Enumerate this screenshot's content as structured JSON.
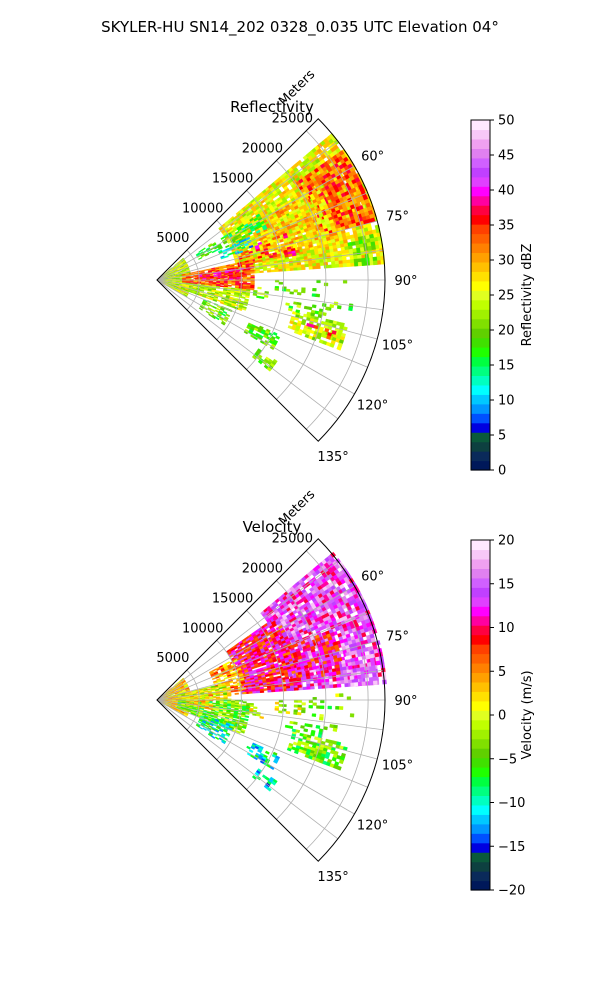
{
  "figure": {
    "suptitle": "SKYLER-HU  SN14_202  0328_0.035 UTC Elevation 04°"
  },
  "chart_data": [
    {
      "type": "heatmap",
      "projection": "polar-sector",
      "title": "Reflectivity",
      "range_axis_label": "Meters",
      "range_ticks": [
        5000,
        10000,
        15000,
        20000,
        25000
      ],
      "range_tick_labels": [
        "5000",
        "10000",
        "15000",
        "20000",
        "25000"
      ],
      "range_lim": [
        0,
        27000
      ],
      "azimuth_range_deg": [
        45,
        135
      ],
      "azimuth_ticks": [
        60,
        75,
        90,
        105,
        120,
        135
      ],
      "azimuth_tick_labels": [
        "60°",
        "75°",
        "90°",
        "105°",
        "120°",
        "135°"
      ],
      "grid": true,
      "colorbar": {
        "label": "Reflectivity dBZ",
        "min": 0,
        "max": 50,
        "ticks": [
          0,
          5,
          10,
          15,
          20,
          25,
          30,
          35,
          40,
          45,
          50
        ],
        "tick_labels": [
          "0",
          "5",
          "10",
          "15",
          "20",
          "25",
          "30",
          "35",
          "40",
          "45",
          "50"
        ],
        "colors": [
          "#00185a",
          "#0a2a5a",
          "#0d4040",
          "#0a5a3a",
          "#0000e0",
          "#0050ff",
          "#0096ff",
          "#00c8ff",
          "#00ffff",
          "#00ffc0",
          "#00ff80",
          "#00ff40",
          "#20ff00",
          "#40e000",
          "#60d000",
          "#80e000",
          "#a0f000",
          "#c0ff00",
          "#e0ff20",
          "#ffff00",
          "#ffe000",
          "#ffc000",
          "#ffa000",
          "#ff8000",
          "#ff6000",
          "#ff4000",
          "#ff0000",
          "#ff0040",
          "#ff00a0",
          "#ff00ff",
          "#e040ff",
          "#c040ff",
          "#d060ff",
          "#e080f0",
          "#f0a0f0",
          "#f8c8f8",
          "#ffe8ff"
        ]
      },
      "regions": [
        {
          "r0": 9500,
          "r1": 27000,
          "az0": 50,
          "az1": 86,
          "value": 26,
          "density": 0.9
        },
        {
          "r0": 20000,
          "r1": 26500,
          "az0": 55,
          "az1": 75,
          "value": 33,
          "density": 0.85
        },
        {
          "r0": 13000,
          "r1": 22000,
          "az0": 60,
          "az1": 78,
          "value": 28,
          "density": 0.7
        },
        {
          "r0": 10000,
          "r1": 17000,
          "az0": 70,
          "az1": 80,
          "value": 36,
          "density": 0.3
        },
        {
          "r0": 23000,
          "r1": 26000,
          "az0": 78,
          "az1": 86,
          "value": 21,
          "density": 0.7
        },
        {
          "r0": 9000,
          "r1": 14000,
          "az0": 57,
          "az1": 65,
          "value": 17,
          "density": 0.5
        },
        {
          "r0": 5500,
          "r1": 8500,
          "az0": 56,
          "az1": 64,
          "value": 18,
          "density": 0.5
        },
        {
          "r0": 8000,
          "r1": 12000,
          "az0": 65,
          "az1": 72,
          "value": 12,
          "density": 0.4
        },
        {
          "r0": 0,
          "r1": 4000,
          "az0": 50,
          "az1": 120,
          "value": 24,
          "density": 0.85
        },
        {
          "r0": 3000,
          "r1": 11500,
          "az0": 78,
          "az1": 96,
          "value": 33,
          "density": 0.85
        },
        {
          "r0": 4500,
          "r1": 10000,
          "az0": 82,
          "az1": 90,
          "value": 37,
          "density": 0.6
        },
        {
          "r0": 3000,
          "r1": 11000,
          "az0": 96,
          "az1": 110,
          "value": 24,
          "density": 0.75
        },
        {
          "r0": 6000,
          "r1": 9500,
          "az0": 112,
          "az1": 124,
          "value": 20,
          "density": 0.45
        },
        {
          "r0": 11500,
          "r1": 13000,
          "az0": 92,
          "az1": 102,
          "value": 21,
          "density": 0.3
        },
        {
          "r0": 12000,
          "r1": 16000,
          "az0": 114,
          "az1": 121,
          "value": 20,
          "density": 0.6
        },
        {
          "r0": 14500,
          "r1": 17000,
          "az0": 124,
          "az1": 129,
          "value": 21,
          "density": 0.6
        },
        {
          "r0": 16500,
          "r1": 23000,
          "az0": 103,
          "az1": 111,
          "value": 24,
          "density": 0.75
        },
        {
          "r0": 18500,
          "r1": 22000,
          "az0": 106,
          "az1": 109,
          "value": 35,
          "density": 0.5
        },
        {
          "r0": 15500,
          "r1": 21000,
          "az0": 99,
          "az1": 103,
          "value": 20,
          "density": 0.35
        },
        {
          "r0": 14000,
          "r1": 17500,
          "az0": 90,
          "az1": 96,
          "value": 18,
          "density": 0.3
        },
        {
          "r0": 18000,
          "r1": 23000,
          "az0": 88,
          "az1": 100,
          "value": 20,
          "density": 0.15
        }
      ]
    },
    {
      "type": "heatmap",
      "projection": "polar-sector",
      "title": "Velocity",
      "range_axis_label": "Meters",
      "range_ticks": [
        5000,
        10000,
        15000,
        20000,
        25000
      ],
      "range_tick_labels": [
        "5000",
        "10000",
        "15000",
        "20000",
        "25000"
      ],
      "range_lim": [
        0,
        27000
      ],
      "azimuth_range_deg": [
        45,
        135
      ],
      "azimuth_ticks": [
        60,
        75,
        90,
        105,
        120,
        135
      ],
      "azimuth_tick_labels": [
        "60°",
        "75°",
        "90°",
        "105°",
        "120°",
        "135°"
      ],
      "grid": true,
      "colorbar": {
        "label": "Velocity (m/s)",
        "min": -20,
        "max": 20,
        "ticks": [
          -20,
          -15,
          -10,
          -5,
          0,
          5,
          10,
          15,
          20
        ],
        "tick_labels": [
          "−20",
          "−15",
          "−10",
          "−5",
          "0",
          "5",
          "10",
          "15",
          "20"
        ],
        "colors": [
          "#00185a",
          "#0a2a5a",
          "#0d4040",
          "#0a5a3a",
          "#0000e0",
          "#0050ff",
          "#0096ff",
          "#00c8ff",
          "#00ffff",
          "#00ffc0",
          "#00ff80",
          "#00ff40",
          "#20ff00",
          "#40e000",
          "#60d000",
          "#80e000",
          "#a0f000",
          "#c0ff00",
          "#e0ff20",
          "#ffff00",
          "#ffe000",
          "#ffc000",
          "#ffa000",
          "#ff8000",
          "#ff6000",
          "#ff4000",
          "#ff0000",
          "#ff0040",
          "#ff00a0",
          "#ff00ff",
          "#e040ff",
          "#c040ff",
          "#d060ff",
          "#e080f0",
          "#f0a0f0",
          "#f8c8f8",
          "#ffe8ff"
        ]
      },
      "regions": [
        {
          "r0": 16000,
          "r1": 27000,
          "az0": 50,
          "az1": 86,
          "value": 14,
          "density": 0.9
        },
        {
          "r0": 10000,
          "r1": 17000,
          "az0": 55,
          "az1": 86,
          "value": 10,
          "density": 0.9
        },
        {
          "r0": 17000,
          "r1": 22000,
          "az0": 68,
          "az1": 82,
          "value": 10,
          "density": 0.6
        },
        {
          "r0": 7000,
          "r1": 10500,
          "az0": 62,
          "az1": 86,
          "value": 4,
          "density": 0.6
        },
        {
          "r0": 23000,
          "r1": 26000,
          "az0": 76,
          "az1": 86,
          "value": 16,
          "density": 0.7
        },
        {
          "r0": 0,
          "r1": 4000,
          "az0": 50,
          "az1": 120,
          "value": 3,
          "density": 0.85
        },
        {
          "r0": 2500,
          "r1": 8500,
          "az0": 76,
          "az1": 90,
          "value": 0,
          "density": 0.75
        },
        {
          "r0": 2500,
          "r1": 11000,
          "az0": 90,
          "az1": 112,
          "value": -4,
          "density": 0.8
        },
        {
          "r0": 3500,
          "r1": 6500,
          "az0": 84,
          "az1": 100,
          "value": 2,
          "density": 0.6
        },
        {
          "r0": 5500,
          "r1": 9500,
          "az0": 108,
          "az1": 124,
          "value": -9,
          "density": 0.5
        },
        {
          "r0": 11000,
          "r1": 12500,
          "az0": 92,
          "az1": 100,
          "value": 0,
          "density": 0.35
        },
        {
          "r0": 12000,
          "r1": 16000,
          "az0": 114,
          "az1": 121,
          "value": -10,
          "density": 0.6
        },
        {
          "r0": 14500,
          "r1": 17000,
          "az0": 124,
          "az1": 129,
          "value": -11,
          "density": 0.6
        },
        {
          "r0": 16500,
          "r1": 23000,
          "az0": 103,
          "az1": 111,
          "value": -4,
          "density": 0.75
        },
        {
          "r0": 15500,
          "r1": 21000,
          "az0": 99,
          "az1": 103,
          "value": -5,
          "density": 0.4
        },
        {
          "r0": 14000,
          "r1": 17500,
          "az0": 90,
          "az1": 96,
          "value": -1,
          "density": 0.3
        },
        {
          "r0": 18000,
          "r1": 23000,
          "az0": 88,
          "az1": 100,
          "value": -3,
          "density": 0.15
        }
      ]
    }
  ]
}
